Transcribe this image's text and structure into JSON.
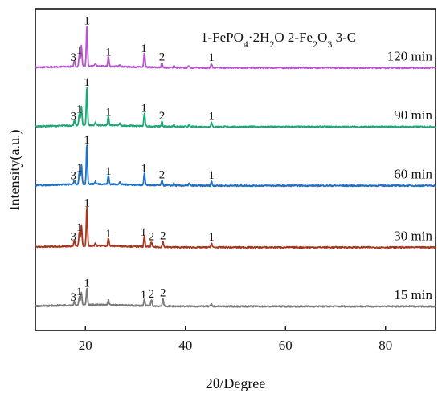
{
  "chart_data": {
    "type": "line",
    "title": "",
    "legend": "1-FePO₄·2H₂O  2-Fe₂O₃  3-C",
    "legend_parts": [
      {
        "text": "1-FePO"
      },
      {
        "text": "4",
        "sub": true
      },
      {
        "text": "·2H"
      },
      {
        "text": "2",
        "sub": true
      },
      {
        "text": "O  2-Fe"
      },
      {
        "text": "2",
        "sub": true
      },
      {
        "text": "O"
      },
      {
        "text": "3",
        "sub": true
      },
      {
        "text": " 3-C"
      }
    ],
    "xlabel": "2θ/Degree",
    "ylabel": "Intensity(a.u.)",
    "xlim": [
      10,
      90
    ],
    "ylim": [
      0,
      6
    ],
    "xticks": [
      20,
      40,
      60,
      80
    ],
    "xtick_labels": [
      "20",
      "40",
      "60",
      "80"
    ],
    "series": [
      {
        "name": "120 min",
        "color": "#b455c9",
        "baseline": 4.9,
        "peaks": [
          [
            17.8,
            0.1
          ],
          [
            18.8,
            0.22
          ],
          [
            19.2,
            0.38
          ],
          [
            20.3,
            0.76
          ],
          [
            22.0,
            0.05
          ],
          [
            24.6,
            0.18
          ],
          [
            26.9,
            0.04
          ],
          [
            31.8,
            0.26
          ],
          [
            35.3,
            0.09
          ],
          [
            37.7,
            0.04
          ],
          [
            40.7,
            0.04
          ],
          [
            45.2,
            0.08
          ]
        ],
        "labels": [
          {
            "x": 17.6,
            "text": "3"
          },
          {
            "x": 18.8,
            "text": "1"
          },
          {
            "x": 20.3,
            "text": "1"
          },
          {
            "x": 24.6,
            "text": "1"
          },
          {
            "x": 31.7,
            "text": "1"
          },
          {
            "x": 35.3,
            "text": "2"
          },
          {
            "x": 45.2,
            "text": "1"
          }
        ]
      },
      {
        "name": "90 min",
        "color": "#1aa873",
        "baseline": 3.8,
        "peaks": [
          [
            17.8,
            0.1
          ],
          [
            18.8,
            0.22
          ],
          [
            19.2,
            0.36
          ],
          [
            20.3,
            0.72
          ],
          [
            22.0,
            0.05
          ],
          [
            24.6,
            0.16
          ],
          [
            26.9,
            0.04
          ],
          [
            31.8,
            0.24
          ],
          [
            35.3,
            0.09
          ],
          [
            37.7,
            0.04
          ],
          [
            40.7,
            0.04
          ],
          [
            45.2,
            0.08
          ]
        ],
        "labels": [
          {
            "x": 17.6,
            "text": "3"
          },
          {
            "x": 18.8,
            "text": "1"
          },
          {
            "x": 20.3,
            "text": "1"
          },
          {
            "x": 24.6,
            "text": "1"
          },
          {
            "x": 31.7,
            "text": "1"
          },
          {
            "x": 35.3,
            "text": "2"
          },
          {
            "x": 45.2,
            "text": "1"
          }
        ]
      },
      {
        "name": "60 min",
        "color": "#1f6fc4",
        "baseline": 2.7,
        "peaks": [
          [
            17.8,
            0.09
          ],
          [
            18.8,
            0.22
          ],
          [
            19.2,
            0.36
          ],
          [
            20.3,
            0.74
          ],
          [
            22.0,
            0.05
          ],
          [
            24.6,
            0.16
          ],
          [
            26.9,
            0.04
          ],
          [
            31.8,
            0.22
          ],
          [
            35.3,
            0.09
          ],
          [
            37.7,
            0.04
          ],
          [
            40.7,
            0.04
          ],
          [
            45.2,
            0.08
          ]
        ],
        "labels": [
          {
            "x": 17.6,
            "text": "3"
          },
          {
            "x": 18.8,
            "text": "1"
          },
          {
            "x": 20.3,
            "text": "1"
          },
          {
            "x": 24.6,
            "text": "1"
          },
          {
            "x": 31.7,
            "text": "1"
          },
          {
            "x": 35.3,
            "text": "2"
          },
          {
            "x": 45.2,
            "text": "1"
          }
        ]
      },
      {
        "name": "30 min",
        "color": "#a8361f",
        "baseline": 1.55,
        "peaks": [
          [
            17.8,
            0.1
          ],
          [
            18.8,
            0.26
          ],
          [
            19.2,
            0.4
          ],
          [
            20.3,
            0.72
          ],
          [
            22.0,
            0.05
          ],
          [
            24.6,
            0.14
          ],
          [
            31.8,
            0.2
          ],
          [
            33.2,
            0.09
          ],
          [
            35.5,
            0.1
          ],
          [
            45.2,
            0.08
          ]
        ],
        "labels": [
          {
            "x": 17.6,
            "text": "3"
          },
          {
            "x": 18.8,
            "text": "1"
          },
          {
            "x": 20.3,
            "text": "1"
          },
          {
            "x": 24.6,
            "text": "1"
          },
          {
            "x": 31.6,
            "text": "1"
          },
          {
            "x": 33.2,
            "text": "2"
          },
          {
            "x": 35.5,
            "text": "2"
          },
          {
            "x": 45.2,
            "text": "1"
          }
        ]
      },
      {
        "name": "15 min",
        "color": "#7a7a7a",
        "baseline": 0.45,
        "peaks": [
          [
            17.8,
            0.07
          ],
          [
            18.8,
            0.16
          ],
          [
            19.2,
            0.22
          ],
          [
            20.3,
            0.32
          ],
          [
            24.6,
            0.09
          ],
          [
            31.8,
            0.12
          ],
          [
            33.2,
            0.12
          ],
          [
            35.5,
            0.14
          ],
          [
            45.2,
            0.04
          ]
        ],
        "labels": [
          {
            "x": 17.6,
            "text": "3"
          },
          {
            "x": 18.8,
            "text": "1"
          },
          {
            "x": 20.3,
            "text": "1"
          },
          {
            "x": 31.6,
            "text": "1"
          },
          {
            "x": 33.2,
            "text": "2"
          },
          {
            "x": 35.5,
            "text": "2"
          }
        ]
      }
    ]
  }
}
